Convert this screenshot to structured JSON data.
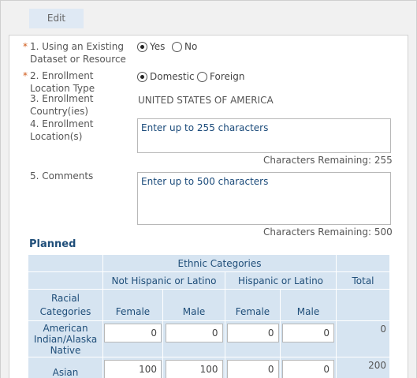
{
  "toolbar": {
    "edit_label": "Edit"
  },
  "form": {
    "q1": {
      "required_mark": "*",
      "label": "1. Using an Existing Dataset or Resource",
      "options": [
        "Yes",
        "No"
      ],
      "selected": "Yes"
    },
    "q2": {
      "required_mark": "*",
      "label": "2. Enrollment Location Type",
      "options": [
        "Domestic",
        "Foreign"
      ],
      "selected": "Domestic"
    },
    "q3": {
      "label": "3. Enrollment Country(ies)",
      "value": "UNITED STATES OF AMERICA"
    },
    "q4": {
      "label": "4. Enrollment Location(s)",
      "value": "Enter up to 255 characters",
      "remaining": "Characters Remaining: 255"
    },
    "q5": {
      "label": "5. Comments",
      "value": "Enter up to 500 characters",
      "remaining": "Characters Remaining: 500"
    }
  },
  "planned": {
    "title": "Planned",
    "header": {
      "ethnic": "Ethnic Categories",
      "not_hispanic": "Not Hispanic or Latino",
      "hispanic": "Hispanic or Latino",
      "total": "Total",
      "racial": "Racial Categories",
      "female": "Female",
      "male": "Male"
    },
    "rows": [
      {
        "category": "American Indian/Alaska Native",
        "values": [
          "0",
          "0",
          "0",
          "0"
        ],
        "total": "0"
      },
      {
        "category": "Asian",
        "values": [
          "100",
          "100",
          "0",
          "0"
        ],
        "total": "200"
      }
    ]
  }
}
